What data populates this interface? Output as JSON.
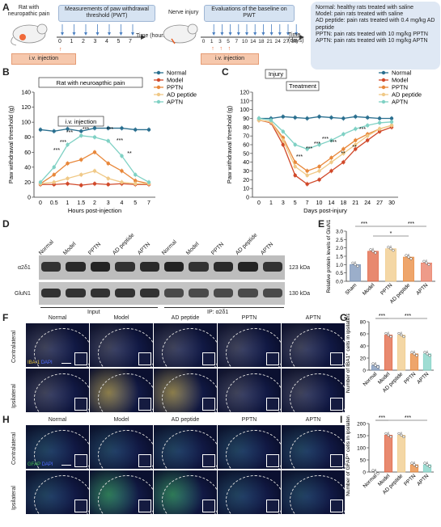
{
  "panels": {
    "A": "A",
    "B": "B",
    "C": "C",
    "D": "D",
    "E": "E",
    "F": "F",
    "G": "G",
    "H": "H",
    "I": "I"
  },
  "panelA": {
    "rat_label": "Rat with neuropathic pain",
    "measure_box": "Measurements of paw withdrawal threshold (PWT)",
    "time_hours": "Time (hours)",
    "ticks_hours": [
      "0",
      "1",
      "2",
      "3",
      "4",
      "5",
      "7"
    ],
    "iv_injection": "i.v. injection",
    "nerve_injury": "Nerve injury",
    "eval_box": "Evaluations of the baseline on PWT",
    "time_days": "Time (days)",
    "ticks_days": [
      "0",
      "1",
      "3",
      "5",
      "7",
      "10",
      "14",
      "18",
      "21",
      "24",
      "27",
      "30"
    ],
    "iv_injection2": "i.v. injection",
    "groups": [
      "Normal: healthy rats treated with saline",
      "Model: pain rats treated with saline",
      "AD peptide: pain rats treated with 0.4 mg/kg AD peptide",
      "PPTN: pain rats treated with 10 mg/kg PPTN",
      "APTN: pain rats treated with 10 mg/kg APTN"
    ]
  },
  "colors": {
    "Normal": "#2a6f8f",
    "Model": "#d1492a",
    "PPTN": "#e8873a",
    "AD peptide": "#f0c987",
    "APTN": "#7fd1c4"
  },
  "chart_data": [
    {
      "type": "line",
      "panel": "B",
      "title": "Rat with neuroapthic pain",
      "annotation": "i.v. injection",
      "xlabel": "Hours post-injection",
      "ylabel": "Paw withdrawal threshold (g)",
      "categories": [
        "0",
        "0.5",
        "1",
        "1.5",
        "2",
        "3",
        "4",
        "5",
        "7"
      ],
      "ylim": [
        0,
        140
      ],
      "yticks": [
        "0",
        "20",
        "40",
        "60",
        "80",
        "100",
        "120",
        "140"
      ],
      "series": [
        {
          "name": "Normal",
          "values": [
            90,
            88,
            91,
            88,
            92,
            92,
            92,
            90,
            90
          ]
        },
        {
          "name": "Model",
          "values": [
            17,
            17,
            18,
            16,
            18,
            17,
            18,
            17,
            17
          ]
        },
        {
          "name": "PPTN",
          "values": [
            18,
            30,
            45,
            50,
            60,
            45,
            35,
            22,
            18
          ]
        },
        {
          "name": "AD peptide",
          "values": [
            18,
            20,
            25,
            30,
            35,
            25,
            20,
            18,
            18
          ]
        },
        {
          "name": "APTN",
          "values": [
            20,
            40,
            70,
            82,
            80,
            75,
            55,
            30,
            20
          ]
        }
      ],
      "stars": [
        "***",
        "***",
        "***",
        "***",
        "***",
        "***",
        "**"
      ]
    },
    {
      "type": "line",
      "panel": "C",
      "annotations": [
        "Injury",
        "Treatment"
      ],
      "xlabel": "Days post-injury",
      "ylabel": "Paw withdrawal threshold (g)",
      "categories": [
        "0",
        "1",
        "3",
        "5",
        "7",
        "10",
        "14",
        "18",
        "21",
        "24",
        "27",
        "30"
      ],
      "ylim": [
        0,
        120
      ],
      "yticks": [
        "0",
        "10",
        "20",
        "30",
        "40",
        "50",
        "60",
        "70",
        "80",
        "90",
        "100",
        "110",
        "120"
      ],
      "series": [
        {
          "name": "Normal",
          "values": [
            90,
            90,
            92,
            91,
            90,
            92,
            91,
            90,
            92,
            91,
            90,
            90
          ]
        },
        {
          "name": "Model",
          "values": [
            88,
            85,
            60,
            25,
            15,
            20,
            30,
            40,
            55,
            65,
            75,
            80
          ]
        },
        {
          "name": "PPTN",
          "values": [
            88,
            86,
            68,
            40,
            30,
            35,
            45,
            55,
            65,
            72,
            78,
            82
          ]
        },
        {
          "name": "AD peptide",
          "values": [
            88,
            86,
            65,
            35,
            25,
            30,
            40,
            50,
            60,
            70,
            78,
            82
          ]
        },
        {
          "name": "APTN",
          "values": [
            90,
            88,
            75,
            60,
            55,
            60,
            65,
            72,
            78,
            82,
            85,
            86
          ]
        }
      ],
      "stars": [
        "***",
        "***",
        "***",
        "***",
        "***",
        "**",
        "**",
        "***"
      ]
    },
    {
      "type": "bar",
      "panel": "E",
      "ylabel": "Relative protein levels of GluN1",
      "categories": [
        "Sham",
        "Model",
        "PPTN",
        "AD peptide",
        "APTN"
      ],
      "values": [
        1.0,
        1.8,
        1.95,
        1.45,
        1.1
      ],
      "ylim": [
        0,
        3.0
      ],
      "yticks": [
        "0.0",
        "0.5",
        "1.0",
        "1.5",
        "2.0",
        "2.5",
        "3.0"
      ],
      "bar_colors": [
        "#7a93b8",
        "#e0623f",
        "#f0c987",
        "#e8873a",
        "#e87a62"
      ],
      "stars": [
        "***",
        "***",
        "*"
      ]
    },
    {
      "type": "bar",
      "panel": "G",
      "ylabel": "Number of IBA1⁺ cells in ipsilateral SDH",
      "categories": [
        "Normal",
        "Model",
        "AD peptide",
        "PPTN",
        "APTN"
      ],
      "values": [
        8,
        58,
        58,
        27,
        27
      ],
      "ylim": [
        0,
        80
      ],
      "yticks": [
        "0",
        "20",
        "40",
        "60",
        "80"
      ],
      "bar_colors": [
        "#7a93b8",
        "#e0623f",
        "#f0c987",
        "#e8873a",
        "#7fd1c4"
      ],
      "stars": [
        "***",
        "***"
      ]
    },
    {
      "type": "bar",
      "panel": "I",
      "ylabel": "Number of GFAP⁺ cells in ipsilateral SDH",
      "categories": [
        "Normal",
        "Model",
        "AD peptide",
        "PPTN",
        "APTN"
      ],
      "values": [
        0,
        152,
        152,
        30,
        30
      ],
      "ylim": [
        0,
        200
      ],
      "yticks": [
        "0",
        "50",
        "100",
        "150",
        "200"
      ],
      "bar_colors": [
        "#7a93b8",
        "#e0623f",
        "#f0c987",
        "#e8873a",
        "#7fd1c4"
      ],
      "stars": [
        "***",
        "***"
      ]
    }
  ],
  "panelD": {
    "lanes": [
      "Normal",
      "Model",
      "PPTN",
      "AD peptide",
      "APTN",
      "Normal",
      "Model",
      "PPTN",
      "AD peptide",
      "APTN"
    ],
    "rows": [
      {
        "label": "α2δ1",
        "kda": "123 kDa"
      },
      {
        "label": "GluN1",
        "kda": "130 kDa"
      }
    ],
    "input": "Input",
    "ip": "IP: α2δ1"
  },
  "panelF": {
    "cols": [
      "Normal",
      "Model",
      "AD peptide",
      "PPTN",
      "APTN"
    ],
    "rows": [
      "Contralateral",
      "Ipsilateral"
    ],
    "stain1": "IBA-1",
    "stain2": "DAPI",
    "stain1_color": "#e8c53a",
    "stain2_color": "#4d6bff"
  },
  "panelH": {
    "cols": [
      "Normal",
      "Model",
      "AD peptide",
      "PPTN",
      "APTN"
    ],
    "rows": [
      "Contralateral",
      "Ipsilateral"
    ],
    "stain1": "GFAP",
    "stain2": "DAPI",
    "stain1_color": "#3fbf4f",
    "stain2_color": "#4d6bff"
  }
}
